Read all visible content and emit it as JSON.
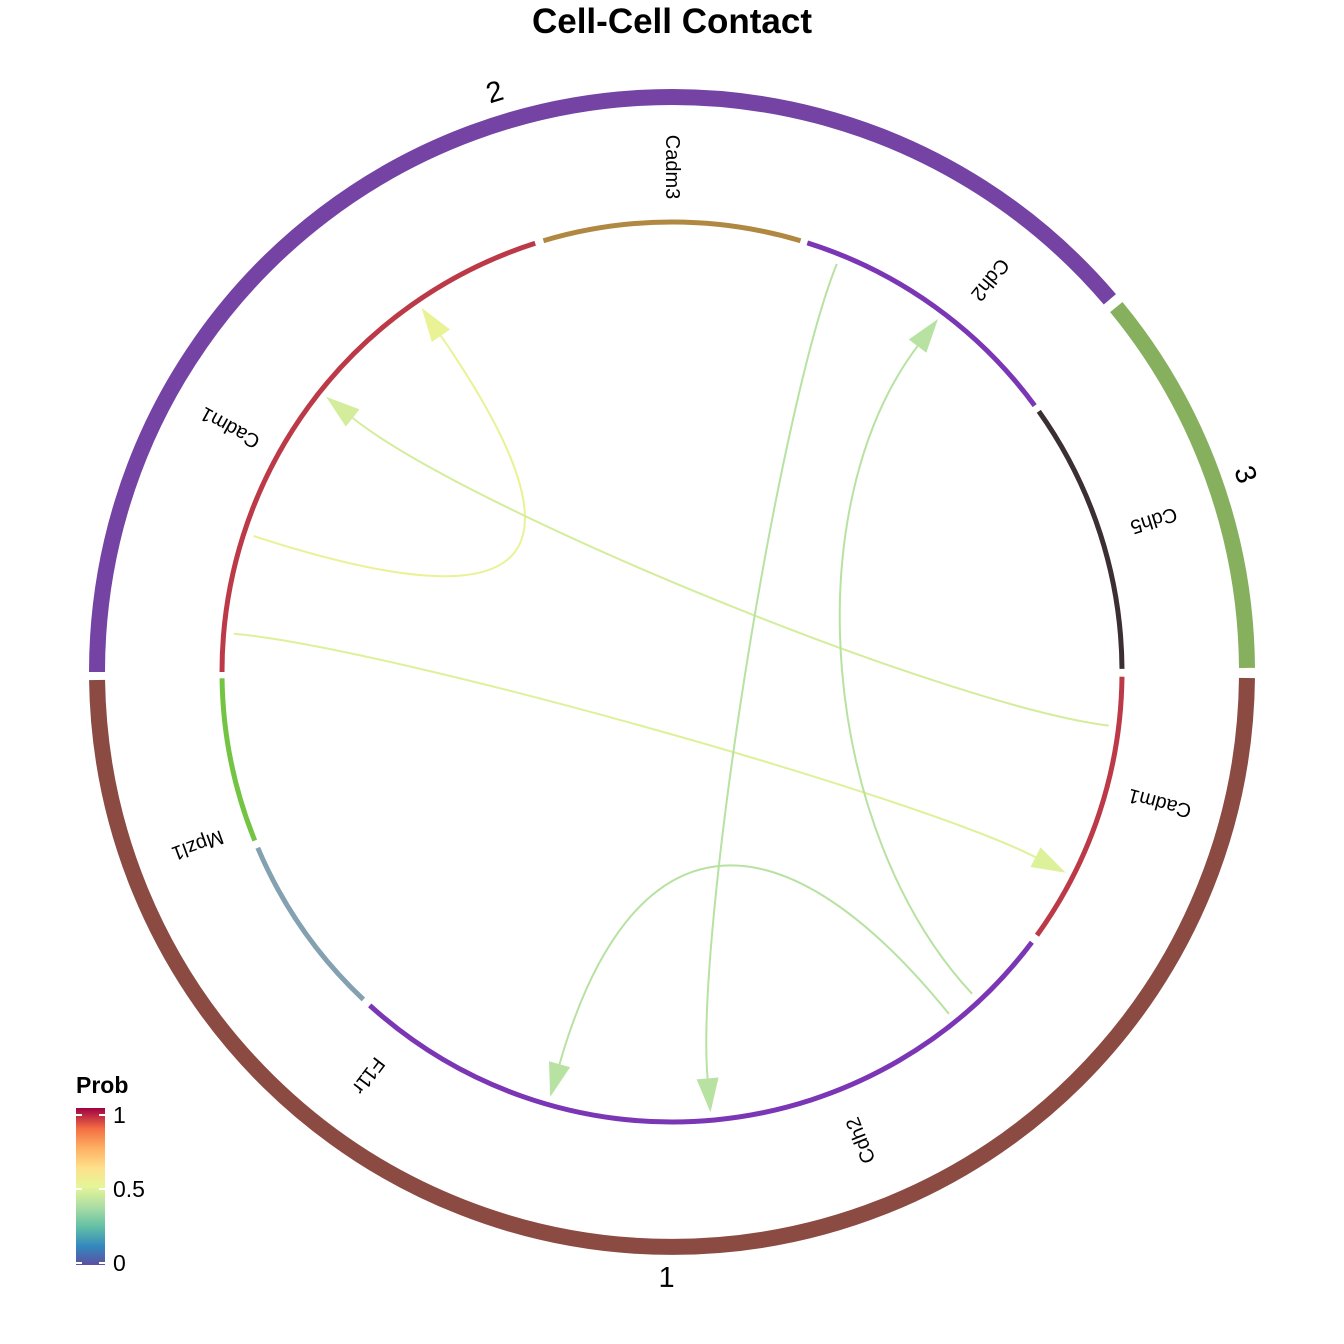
{
  "chart_data": {
    "type": "chord",
    "title": "Cell-Cell Contact",
    "groups": [
      {
        "id": "2",
        "label": "2",
        "color": "#7443a4"
      },
      {
        "id": "3",
        "label": "3",
        "color": "#86b05e"
      },
      {
        "id": "1",
        "label": "1",
        "color": "#8b4a42"
      }
    ],
    "sectors": [
      {
        "key": "2-Cadm1",
        "group": "2",
        "label": "Cadm1",
        "color": "#bc3a48"
      },
      {
        "key": "2-Cadm3",
        "group": "2",
        "label": "Cadm3",
        "color": "#b08841"
      },
      {
        "key": "2-Cdh2",
        "group": "2",
        "label": "Cdh2",
        "color": "#7b36b5"
      },
      {
        "key": "3-Cdh5",
        "group": "3",
        "label": "Cdh5",
        "color": "#3b2f33"
      },
      {
        "key": "1-Cadm1",
        "group": "1",
        "label": "Cadm1",
        "color": "#bc3a48"
      },
      {
        "key": "1-Cdh2",
        "group": "1",
        "label": "Cdh2",
        "color": "#7b36b5"
      },
      {
        "key": "1-F11r",
        "group": "1",
        "label": "F11r",
        "color": "#83a1b0"
      },
      {
        "key": "1-Mpzl1",
        "group": "1",
        "label": "Mpzl1",
        "color": "#73c443"
      }
    ],
    "links": [
      {
        "from": "2-Cadm1",
        "to": "2-Cadm1",
        "prob": 0.52
      },
      {
        "from": "1-Cadm1",
        "to": "2-Cadm1",
        "prob": 0.46
      },
      {
        "from": "2-Cadm1",
        "to": "1-Cadm1",
        "prob": 0.48
      },
      {
        "from": "2-Cdh2",
        "to": "1-Cdh2",
        "prob": 0.4
      },
      {
        "from": "1-Cdh2",
        "to": "2-Cdh2",
        "prob": 0.4
      },
      {
        "from": "1-Cdh2",
        "to": "1-Cdh2",
        "prob": 0.4
      }
    ],
    "legend": {
      "title": "Prob",
      "ticks": [
        "1",
        "0.5",
        "0"
      ],
      "range": [
        0,
        1
      ],
      "position": "bottom-left",
      "palette": "Spectral"
    }
  }
}
